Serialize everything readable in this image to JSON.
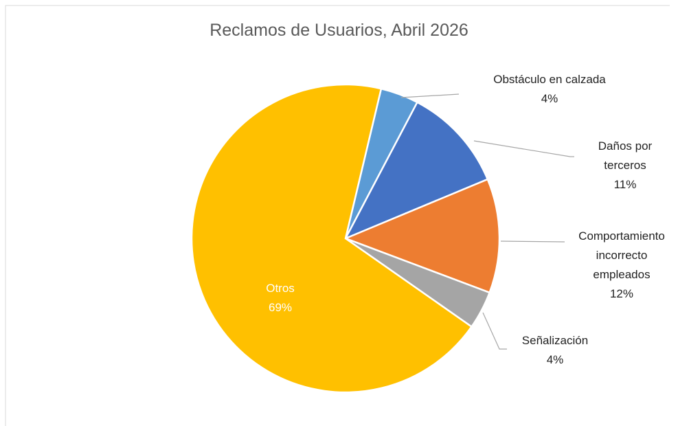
{
  "chart_data": {
    "type": "pie",
    "title": "Reclamos de Usuarios, Abril 2026",
    "categories": [
      "Obstáculo en calzada",
      "Daños por terceros",
      "Comportamiento incorrecto empleados",
      "Señalización",
      "Otros"
    ],
    "values": [
      4,
      11,
      12,
      4,
      69
    ],
    "value_labels": [
      "4%",
      "11%",
      "12%",
      "4%",
      "69%"
    ],
    "colors": [
      "#5b9bd5",
      "#4472c4",
      "#ed7d31",
      "#a5a5a5",
      "#ffc000"
    ]
  }
}
